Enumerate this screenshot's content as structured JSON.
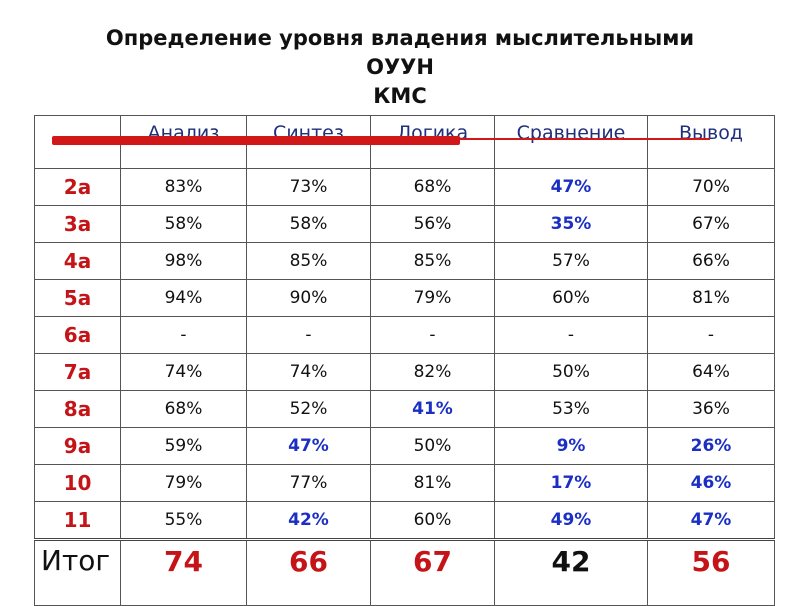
{
  "title": {
    "line1": "Определение уровня владения мыслительными",
    "line2": "ОУУН",
    "line3": "КМС"
  },
  "colors": {
    "red": "#c41418",
    "blue": "#1b2fc4",
    "black": "#111111"
  },
  "table": {
    "headers": [
      "",
      "Анализ",
      "Синтез",
      "Логика",
      "Сравнение",
      "Вывод"
    ],
    "rows": [
      {
        "label": "2а",
        "cells": [
          {
            "v": "83%",
            "c": "black",
            "b": false
          },
          {
            "v": "73%",
            "c": "black",
            "b": false
          },
          {
            "v": "68%",
            "c": "black",
            "b": false
          },
          {
            "v": "47%",
            "c": "blue",
            "b": true
          },
          {
            "v": "70%",
            "c": "black",
            "b": false
          }
        ]
      },
      {
        "label": "3а",
        "cells": [
          {
            "v": "58%",
            "c": "black",
            "b": false
          },
          {
            "v": "58%",
            "c": "black",
            "b": false
          },
          {
            "v": "56%",
            "c": "black",
            "b": false
          },
          {
            "v": "35%",
            "c": "blue",
            "b": true
          },
          {
            "v": "67%",
            "c": "black",
            "b": false
          }
        ]
      },
      {
        "label": "4а",
        "cells": [
          {
            "v": "98%",
            "c": "black",
            "b": false
          },
          {
            "v": "85%",
            "c": "black",
            "b": false
          },
          {
            "v": "85%",
            "c": "black",
            "b": false
          },
          {
            "v": "57%",
            "c": "black",
            "b": false
          },
          {
            "v": "66%",
            "c": "black",
            "b": false
          }
        ]
      },
      {
        "label": "5а",
        "cells": [
          {
            "v": "94%",
            "c": "black",
            "b": false
          },
          {
            "v": "90%",
            "c": "black",
            "b": false
          },
          {
            "v": "79%",
            "c": "black",
            "b": false
          },
          {
            "v": "60%",
            "c": "black",
            "b": false
          },
          {
            "v": "81%",
            "c": "black",
            "b": false
          }
        ]
      },
      {
        "label": "6а",
        "cells": [
          {
            "v": "-",
            "c": "black",
            "b": false
          },
          {
            "v": "-",
            "c": "black",
            "b": false
          },
          {
            "v": "-",
            "c": "black",
            "b": false
          },
          {
            "v": "-",
            "c": "black",
            "b": false
          },
          {
            "v": "-",
            "c": "black",
            "b": false
          }
        ]
      },
      {
        "label": "7а",
        "cells": [
          {
            "v": "74%",
            "c": "black",
            "b": false
          },
          {
            "v": "74%",
            "c": "black",
            "b": false
          },
          {
            "v": "82%",
            "c": "black",
            "b": false
          },
          {
            "v": "50%",
            "c": "black",
            "b": false
          },
          {
            "v": "64%",
            "c": "black",
            "b": false
          }
        ]
      },
      {
        "label": "8а",
        "cells": [
          {
            "v": "68%",
            "c": "black",
            "b": false
          },
          {
            "v": "52%",
            "c": "black",
            "b": false
          },
          {
            "v": "41%",
            "c": "blue",
            "b": true
          },
          {
            "v": "53%",
            "c": "black",
            "b": false
          },
          {
            "v": "36%",
            "c": "black",
            "b": false
          }
        ]
      },
      {
        "label": "9а",
        "cells": [
          {
            "v": "59%",
            "c": "black",
            "b": false
          },
          {
            "v": "47%",
            "c": "blue",
            "b": true
          },
          {
            "v": "50%",
            "c": "black",
            "b": false
          },
          {
            "v": "9%",
            "c": "blue",
            "b": true
          },
          {
            "v": "26%",
            "c": "blue",
            "b": true
          }
        ]
      },
      {
        "label": "10",
        "cells": [
          {
            "v": "79%",
            "c": "black",
            "b": false
          },
          {
            "v": "77%",
            "c": "black",
            "b": false
          },
          {
            "v": "81%",
            "c": "black",
            "b": false
          },
          {
            "v": "17%",
            "c": "blue",
            "b": true
          },
          {
            "v": "46%",
            "c": "blue",
            "b": true
          }
        ]
      },
      {
        "label": "11",
        "cells": [
          {
            "v": "55%",
            "c": "black",
            "b": false
          },
          {
            "v": "42%",
            "c": "blue",
            "b": true
          },
          {
            "v": "60%",
            "c": "black",
            "b": false
          },
          {
            "v": "49%",
            "c": "blue",
            "b": true
          },
          {
            "v": "47%",
            "c": "blue",
            "b": true
          }
        ]
      }
    ],
    "total": {
      "label": "Итог",
      "cells": [
        {
          "v": "74",
          "c": "red"
        },
        {
          "v": "66",
          "c": "red"
        },
        {
          "v": "67",
          "c": "red"
        },
        {
          "v": "42",
          "c": "black"
        },
        {
          "v": "56",
          "c": "red"
        }
      ]
    }
  }
}
